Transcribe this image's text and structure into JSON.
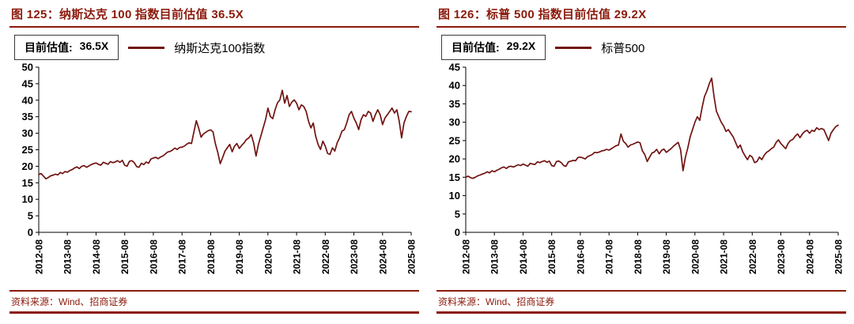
{
  "colors": {
    "accent": "#8B1A0B",
    "series": "#701310",
    "axis": "#000000"
  },
  "panels": [
    {
      "title": "图 125：纳斯达克 100 指数目前估值 36.5X",
      "legend_label": "目前估值:",
      "legend_value": "36.5X",
      "series_label": "纳斯达克100指数",
      "source": "资料来源：Wind、招商证券"
    },
    {
      "title": "图 126：标普 500 指数目前估值 29.2X",
      "legend_label": "目前估值:",
      "legend_value": "29.2X",
      "series_label": "标普500",
      "source": "资料来源：Wind、招商证券"
    }
  ],
  "chart_data": [
    {
      "type": "line",
      "title": "纳斯达克100指数 PE",
      "current_value": 36.5,
      "ylim": [
        0,
        50
      ],
      "y_tick_step": 5,
      "x_tick_interval": 12,
      "x_tick_labels": [
        "2012-08",
        "2013-08",
        "2014-08",
        "2015-08",
        "2016-08",
        "2017-08",
        "2018-08",
        "2019-08",
        "2020-08",
        "2021-08",
        "2022-08",
        "2023-08",
        "2024-08",
        "2025-08"
      ],
      "legend_position": "top-left",
      "grid": false,
      "series": [
        {
          "name": "纳斯达克100指数",
          "x_start": "2012-08",
          "x_freq": "monthly",
          "values": [
            17.5,
            17.8,
            17.0,
            16.2,
            16.6,
            17.1,
            17.3,
            17.6,
            17.4,
            18.1,
            17.8,
            18.4,
            18.2,
            18.7,
            19.0,
            19.5,
            19.8,
            19.3,
            20.0,
            20.2,
            19.7,
            20.1,
            20.5,
            20.8,
            21.0,
            20.6,
            20.3,
            21.2,
            20.9,
            20.6,
            21.4,
            21.1,
            21.3,
            21.7,
            21.2,
            21.8,
            20.3,
            20.0,
            21.5,
            21.7,
            21.1,
            19.9,
            19.7,
            20.9,
            20.5,
            21.3,
            20.9,
            22.2,
            22.5,
            22.7,
            22.3,
            22.8,
            23.1,
            23.7,
            24.3,
            24.5,
            24.9,
            25.5,
            25.1,
            25.7,
            25.8,
            26.1,
            26.7,
            27.1,
            26.9,
            30.5,
            33.8,
            31.5,
            28.8,
            29.8,
            30.3,
            30.8,
            31.0,
            30.4,
            26.8,
            24.2,
            20.8,
            22.6,
            24.6,
            25.6,
            26.6,
            24.4,
            26.1,
            26.9,
            25.4,
            26.3,
            27.1,
            28.1,
            28.6,
            29.6,
            27.1,
            23.1,
            26.6,
            29.1,
            31.6,
            34.1,
            37.6,
            35.1,
            34.4,
            37.1,
            39.2,
            40.1,
            43.0,
            39.1,
            41.4,
            38.1,
            39.4,
            40.1,
            39.1,
            37.1,
            38.6,
            38.1,
            36.6,
            33.6,
            31.6,
            33.1,
            29.1,
            26.6,
            25.1,
            27.6,
            26.1,
            23.9,
            23.6,
            25.6,
            24.6,
            27.1,
            28.6,
            30.6,
            31.1,
            33.1,
            35.6,
            36.6,
            34.6,
            33.1,
            31.1,
            34.1,
            35.6,
            35.1,
            36.6,
            36.1,
            33.6,
            35.6,
            37.1,
            35.6,
            32.6,
            34.6,
            35.6,
            36.6,
            37.6,
            36.1,
            37.1,
            33.6,
            28.6,
            33.1,
            35.1,
            36.6,
            36.5
          ]
        }
      ]
    },
    {
      "type": "line",
      "title": "标普500 PE",
      "current_value": 29.2,
      "ylim": [
        0,
        45
      ],
      "y_tick_step": 5,
      "x_tick_interval": 12,
      "x_tick_labels": [
        "2012-08",
        "2013-08",
        "2014-08",
        "2015-08",
        "2016-08",
        "2017-08",
        "2018-08",
        "2019-08",
        "2020-08",
        "2021-08",
        "2022-08",
        "2023-08",
        "2024-08",
        "2025-08"
      ],
      "legend_position": "top-left",
      "grid": false,
      "series": [
        {
          "name": "标普500",
          "x_start": "2012-08",
          "x_freq": "monthly",
          "values": [
            15.0,
            15.3,
            14.9,
            14.7,
            15.0,
            15.4,
            15.6,
            15.9,
            16.1,
            16.5,
            16.2,
            16.8,
            16.5,
            16.9,
            17.2,
            17.6,
            17.8,
            17.4,
            17.9,
            18.0,
            17.8,
            18.1,
            18.4,
            18.2,
            18.6,
            18.3,
            18.0,
            18.8,
            18.6,
            18.5,
            19.2,
            19.0,
            19.3,
            19.5,
            19.1,
            19.4,
            18.2,
            18.0,
            19.3,
            19.4,
            19.0,
            18.2,
            18.0,
            19.2,
            19.4,
            19.6,
            19.5,
            20.4,
            20.5,
            20.3,
            20.0,
            20.6,
            20.9,
            21.2,
            21.8,
            21.7,
            21.9,
            22.2,
            22.3,
            22.6,
            22.4,
            22.8,
            23.2,
            23.6,
            23.8,
            26.8,
            24.8,
            24.2,
            23.2,
            23.8,
            24.0,
            24.3,
            24.6,
            24.4,
            22.2,
            21.2,
            19.3,
            20.5,
            21.6,
            21.9,
            22.6,
            21.4,
            22.3,
            22.7,
            21.8,
            22.3,
            22.8,
            23.5,
            24.0,
            24.5,
            22.5,
            16.8,
            20.5,
            23.0,
            26.0,
            28.0,
            30.0,
            31.5,
            30.5,
            34.0,
            37.0,
            38.5,
            40.5,
            42.0,
            37.0,
            33.0,
            31.5,
            30.0,
            29.0,
            27.5,
            28.0,
            27.0,
            26.0,
            24.5,
            23.0,
            23.8,
            22.0,
            20.8,
            19.8,
            21.0,
            20.5,
            19.0,
            19.3,
            20.5,
            19.8,
            21.0,
            21.8,
            22.2,
            22.8,
            23.2,
            24.5,
            25.2,
            24.2,
            23.5,
            22.8,
            24.2,
            25.0,
            25.3,
            26.2,
            26.8,
            25.8,
            26.8,
            27.5,
            27.8,
            27.0,
            27.8,
            27.5,
            28.5,
            28.0,
            28.3,
            28.0,
            26.5,
            25.0,
            27.0,
            28.0,
            28.8,
            29.2
          ]
        }
      ]
    }
  ]
}
